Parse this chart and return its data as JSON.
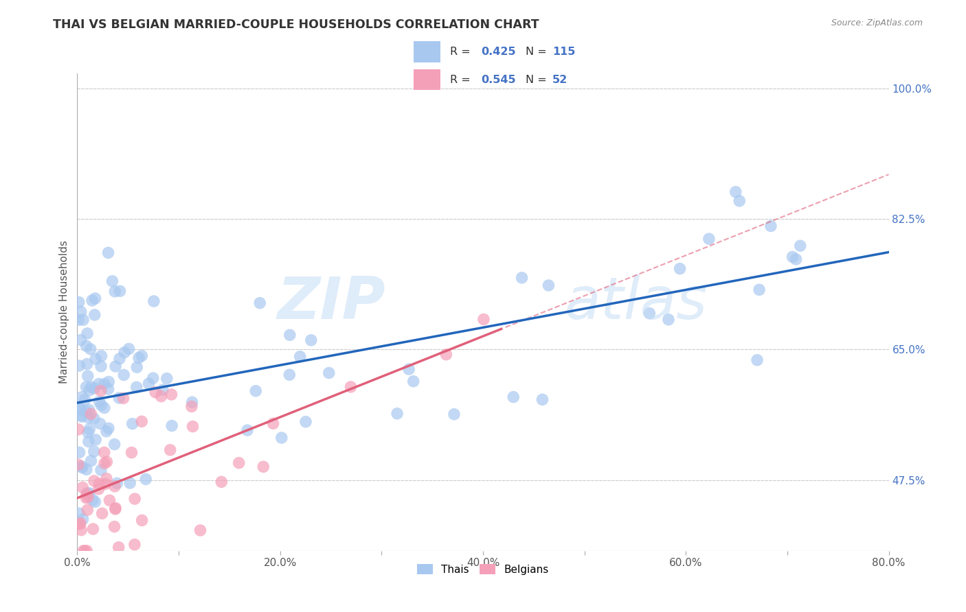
{
  "title": "THAI VS BELGIAN MARRIED-COUPLE HOUSEHOLDS CORRELATION CHART",
  "source": "Source: ZipAtlas.com",
  "ylabel": "Married-couple Households",
  "xmin": 0.0,
  "xmax": 0.8,
  "ymin": 0.38,
  "ymax": 1.02,
  "thai_R": 0.425,
  "thai_N": 115,
  "belgian_R": 0.545,
  "belgian_N": 52,
  "thai_color": "#a8c8f0",
  "belgian_color": "#f4a0b8",
  "thai_line_color": "#2266bb",
  "belgian_line_color": "#e0607a",
  "watermark_zip_color": "#c5ddf5",
  "watermark_atlas_color": "#c5ddf5",
  "background_color": "#ffffff",
  "grid_color": "#cccccc",
  "right_tick_color": "#4472c4",
  "ytick_positions": [
    0.475,
    0.65,
    0.825,
    1.0
  ],
  "ytick_labels": [
    "47.5%",
    "65.0%",
    "82.5%",
    "100.0%"
  ],
  "xtick_positions": [
    0.0,
    0.1,
    0.2,
    0.3,
    0.4,
    0.5,
    0.6,
    0.7,
    0.8
  ],
  "xtick_labels": [
    "0.0%",
    "",
    "20.0%",
    "",
    "40.0%",
    "",
    "60.0%",
    "",
    "80.0%"
  ],
  "thai_line_intercept": 0.575,
  "thai_line_slope": 0.27,
  "belgian_line_intercept": 0.475,
  "belgian_line_slope": 0.42
}
